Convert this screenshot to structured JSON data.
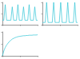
{
  "chart_data": [
    {
      "type": "line",
      "color": "#2ec4d6",
      "grid": false,
      "tick_labels": false,
      "x": [
        0,
        2,
        4,
        6,
        8,
        10,
        12,
        14,
        16,
        18,
        20,
        22,
        24,
        26,
        28,
        30,
        32,
        34,
        36,
        38,
        40,
        42,
        44,
        46,
        48,
        50
      ],
      "values": [
        2,
        2,
        9,
        2,
        2,
        2,
        2,
        8,
        2,
        2,
        2,
        9,
        2,
        2,
        2,
        8,
        2,
        2,
        2,
        9,
        2,
        2,
        2,
        8,
        2,
        2
      ],
      "xlim": [
        0,
        50
      ],
      "xticks": [
        0,
        25,
        50
      ],
      "ylim": [
        0,
        10
      ],
      "yticks": [
        0,
        5,
        10
      ]
    },
    {
      "type": "line",
      "color": "#2ec4d6",
      "grid": false,
      "tick_labels": false,
      "x": [
        0,
        2,
        4,
        6,
        8,
        10,
        12,
        14,
        16,
        18,
        20,
        22,
        24,
        26,
        28,
        30,
        32,
        34,
        36,
        38,
        40,
        42,
        44,
        46,
        48,
        50
      ],
      "values": [
        1,
        1,
        1,
        10,
        1,
        1,
        1,
        1,
        10,
        1,
        1,
        1,
        1,
        10,
        1,
        1,
        1,
        1,
        10,
        1,
        1,
        1,
        1,
        10,
        1,
        1
      ],
      "xlim": [
        0,
        50
      ],
      "xticks": [
        0,
        25,
        50
      ],
      "ylim": [
        0,
        10
      ],
      "yticks": [
        0,
        5,
        10
      ]
    },
    {
      "type": "line",
      "color": "#2ec4d6",
      "grid": false,
      "tick_labels": false,
      "x": [
        0,
        2,
        4,
        6,
        8,
        10,
        12,
        14,
        16,
        18,
        20,
        22,
        24,
        26,
        28,
        30,
        32,
        34,
        36,
        38,
        40,
        42,
        44,
        46,
        48,
        50
      ],
      "values": [
        0,
        2,
        3.5,
        4.5,
        5.3,
        6,
        6.5,
        7,
        7.3,
        7.6,
        7.8,
        8,
        8.1,
        8.2,
        8.3,
        8.4,
        8.4,
        8.5,
        8.5,
        8.6,
        8.6,
        8.6,
        8.7,
        8.7,
        8.7,
        8.8
      ],
      "xlim": [
        0,
        50
      ],
      "xticks": [
        0,
        25,
        50
      ],
      "ylim": [
        0,
        10
      ],
      "yticks": [
        0,
        5,
        10
      ]
    }
  ]
}
